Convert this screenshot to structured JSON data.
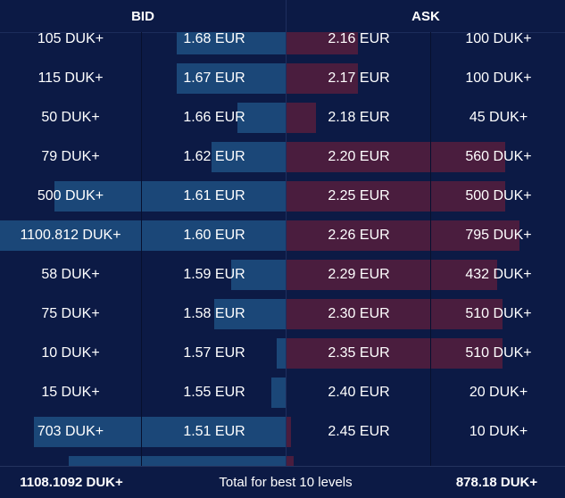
{
  "header": {
    "bid_label": "BID",
    "ask_label": "ASK"
  },
  "colors": {
    "background": "#0c1a45",
    "bid_bar": "#1b4778",
    "ask_bar": "#4a1d3e"
  },
  "rows": [
    {
      "bid_qty": "105 DUK+",
      "bid_price": "1.68 EUR",
      "ask_price": "2.16 EUR",
      "ask_qty": "100 DUK+",
      "bid_depth": 0.38,
      "ask_depth": 0.26
    },
    {
      "bid_qty": "115 DUK+",
      "bid_price": "1.67 EUR",
      "ask_price": "2.17 EUR",
      "ask_qty": "100 DUK+",
      "bid_depth": 0.38,
      "ask_depth": 0.26
    },
    {
      "bid_qty": "50 DUK+",
      "bid_price": "1.66 EUR",
      "ask_price": "2.18 EUR",
      "ask_qty": "45 DUK+",
      "bid_depth": 0.17,
      "ask_depth": 0.11
    },
    {
      "bid_qty": "79 DUK+",
      "bid_price": "1.62 EUR",
      "ask_price": "2.20 EUR",
      "ask_qty": "560 DUK+",
      "bid_depth": 0.26,
      "ask_depth": 0.79
    },
    {
      "bid_qty": "500 DUK+",
      "bid_price": "1.61 EUR",
      "ask_price": "2.25 EUR",
      "ask_qty": "500 DUK+",
      "bid_depth": 0.81,
      "ask_depth": 0.79
    },
    {
      "bid_qty": "1100.812 DUK+",
      "bid_price": "1.60 EUR",
      "ask_price": "2.26 EUR",
      "ask_qty": "795 DUK+",
      "bid_depth": 1.0,
      "ask_depth": 0.84
    },
    {
      "bid_qty": "58 DUK+",
      "bid_price": "1.59 EUR",
      "ask_price": "2.29 EUR",
      "ask_qty": "432 DUK+",
      "bid_depth": 0.19,
      "ask_depth": 0.76
    },
    {
      "bid_qty": "75 DUK+",
      "bid_price": "1.58 EUR",
      "ask_price": "2.30 EUR",
      "ask_qty": "510 DUK+",
      "bid_depth": 0.25,
      "ask_depth": 0.78
    },
    {
      "bid_qty": "10 DUK+",
      "bid_price": "1.57 EUR",
      "ask_price": "2.35 EUR",
      "ask_qty": "510 DUK+",
      "bid_depth": 0.03,
      "ask_depth": 0.78
    },
    {
      "bid_qty": "15 DUK+",
      "bid_price": "1.55 EUR",
      "ask_price": "2.40 EUR",
      "ask_qty": "20 DUK+",
      "bid_depth": 0.05,
      "ask_depth": 0.0
    },
    {
      "bid_qty": "703 DUK+",
      "bid_price": "1.51 EUR",
      "ask_price": "2.45 EUR",
      "ask_qty": "10 DUK+",
      "bid_depth": 0.88,
      "ask_depth": 0.02
    },
    {
      "bid_qty": "",
      "bid_price": "",
      "ask_price": "",
      "ask_qty": "",
      "bid_depth": 0.76,
      "ask_depth": 0.03
    }
  ],
  "footer": {
    "bid_total": "1108.1092 DUK+",
    "label": "Total for best 10 levels",
    "ask_total": "878.18 DUK+"
  }
}
